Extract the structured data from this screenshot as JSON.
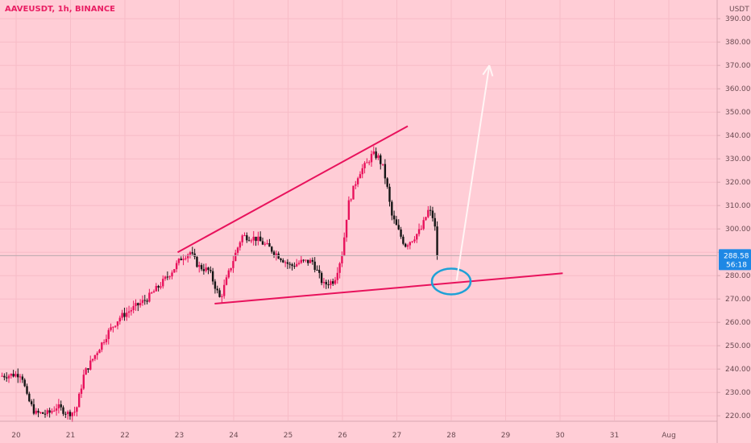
{
  "header": {
    "symbol_label": "AAVEUSDT, 1h, BINANCE",
    "currency": "USDT"
  },
  "price_badge": {
    "value": "288.58",
    "countdown": "56:18"
  },
  "colors": {
    "background": "#ffcdd6",
    "up_candle": "#e8125c",
    "down_candle": "#141414",
    "trendline": "#e8125c",
    "ellipse": "#1ea1d6",
    "arrow": "#fff5f5",
    "badge": "#1e88e5"
  },
  "chart_data": {
    "type": "candlestick",
    "title": "AAVEUSDT, 1h, BINANCE",
    "xlabel": "",
    "ylabel": "",
    "y_axis_label": "USDT",
    "ylim": [
      218,
      398
    ],
    "y_ticks": [
      220,
      230,
      240,
      250,
      260,
      270,
      280,
      290,
      300,
      310,
      320,
      330,
      340,
      350,
      360,
      370,
      380,
      390
    ],
    "x_ticks": [
      {
        "label": "20",
        "day": 0
      },
      {
        "label": "21",
        "day": 1
      },
      {
        "label": "22",
        "day": 2
      },
      {
        "label": "23",
        "day": 3
      },
      {
        "label": "24",
        "day": 4
      },
      {
        "label": "25",
        "day": 5
      },
      {
        "label": "26",
        "day": 6
      },
      {
        "label": "27",
        "day": 7
      },
      {
        "label": "28",
        "day": 8
      },
      {
        "label": "29",
        "day": 9
      },
      {
        "label": "30",
        "day": 10
      },
      {
        "label": "31",
        "day": 11
      },
      {
        "label": "Aug",
        "day": 12
      }
    ],
    "current_price": 288.58,
    "price_path_waypoints": [
      [
        -0.3,
        237
      ],
      [
        0.1,
        238
      ],
      [
        0.2,
        228
      ],
      [
        0.35,
        221
      ],
      [
        0.6,
        221
      ],
      [
        0.75,
        224
      ],
      [
        0.95,
        221
      ],
      [
        1.1,
        222
      ],
      [
        1.25,
        238
      ],
      [
        1.45,
        246
      ],
      [
        1.7,
        256
      ],
      [
        1.9,
        262
      ],
      [
        2.15,
        266
      ],
      [
        2.4,
        270
      ],
      [
        2.65,
        276
      ],
      [
        2.9,
        283
      ],
      [
        3.05,
        288
      ],
      [
        3.2,
        290
      ],
      [
        3.35,
        284
      ],
      [
        3.55,
        282
      ],
      [
        3.75,
        270
      ],
      [
        3.95,
        284
      ],
      [
        4.15,
        297
      ],
      [
        4.4,
        296
      ],
      [
        4.65,
        292
      ],
      [
        4.85,
        288
      ],
      [
        5.05,
        284
      ],
      [
        5.25,
        286
      ],
      [
        5.45,
        286
      ],
      [
        5.65,
        276
      ],
      [
        5.85,
        278
      ],
      [
        6.0,
        290
      ],
      [
        6.1,
        310
      ],
      [
        6.3,
        324
      ],
      [
        6.45,
        328
      ],
      [
        6.55,
        332
      ],
      [
        6.65,
        331
      ],
      [
        6.75,
        326
      ],
      [
        6.82,
        318
      ],
      [
        6.9,
        306
      ],
      [
        7.05,
        298
      ],
      [
        7.15,
        293
      ],
      [
        7.3,
        296
      ],
      [
        7.45,
        300
      ],
      [
        7.58,
        308
      ],
      [
        7.65,
        306
      ],
      [
        7.72,
        298
      ],
      [
        7.76,
        288.58
      ]
    ],
    "annotations": {
      "upper_trendline": [
        [
          2.97,
          290
        ],
        [
          7.2,
          344
        ]
      ],
      "lower_trendline": [
        [
          3.65,
          268
        ],
        [
          10.05,
          281
        ]
      ],
      "ellipse_center": [
        8.0,
        277.5
      ],
      "arrow": [
        [
          8.1,
          278
        ],
        [
          8.7,
          370
        ]
      ]
    }
  }
}
